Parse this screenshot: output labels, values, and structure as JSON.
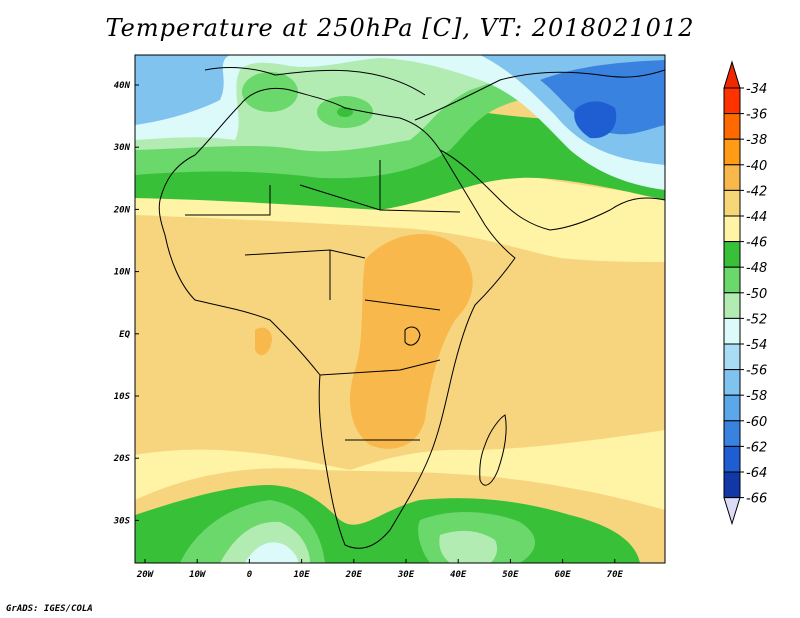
{
  "title": "Temperature at 250hPa [C], VT: 2018021012",
  "credit": "GrADS: IGES/COLA",
  "axes": {
    "lon_ticks": [
      "20W",
      "10W",
      "0",
      "10E",
      "20E",
      "30E",
      "40E",
      "50E",
      "60E",
      "70E"
    ],
    "lat_ticks": [
      "40N",
      "30N",
      "20N",
      "10N",
      "EQ",
      "10S",
      "20S",
      "30S"
    ]
  },
  "colorbar": {
    "labels": [
      "-34",
      "-36",
      "-38",
      "-40",
      "-42",
      "-44",
      "-46",
      "-48",
      "-50",
      "-52",
      "-54",
      "-56",
      "-58",
      "-60",
      "-62",
      "-64",
      "-66"
    ],
    "colors": [
      "#ff3300",
      "#ff6a00",
      "#ff9b14",
      "#f9b84c",
      "#f5d77a",
      "#fff3a6",
      "#38c038",
      "#6ad86a",
      "#b2ecb2",
      "#dcfafa",
      "#a8ddf5",
      "#80c3ef",
      "#5aa8ea",
      "#3a82e0",
      "#1e5ed2",
      "#1238a8",
      "#0a1270"
    ],
    "top_arrow_color": "#f02800",
    "bottom_arrow_color": "#dcdcf8"
  }
}
